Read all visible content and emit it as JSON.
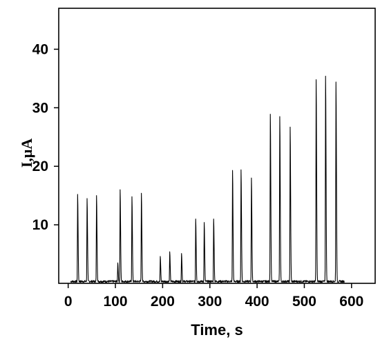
{
  "chart_data": {
    "type": "line",
    "title": "",
    "xlabel": "Time, s",
    "ylabel": "I,μA",
    "xlim": [
      -20,
      650
    ],
    "ylim": [
      0,
      47
    ],
    "xticks": [
      0,
      100,
      200,
      300,
      400,
      500,
      600
    ],
    "yticks": [
      10,
      20,
      30,
      40
    ],
    "grid": false,
    "legend": "none",
    "line_color": "#000000",
    "baseline": {
      "start": 5,
      "end": 585
    },
    "series": [
      {
        "peaks": [
          {
            "t": 20,
            "i": 15.2
          },
          {
            "t": 40,
            "i": 14.5
          },
          {
            "t": 60,
            "i": 15.0
          },
          {
            "t": 105,
            "i": 3.5
          },
          {
            "t": 110,
            "i": 16.0
          },
          {
            "t": 135,
            "i": 14.8
          },
          {
            "t": 155,
            "i": 15.4
          },
          {
            "t": 195,
            "i": 4.6
          },
          {
            "t": 215,
            "i": 5.4
          },
          {
            "t": 240,
            "i": 5.1
          },
          {
            "t": 270,
            "i": 11.0
          },
          {
            "t": 288,
            "i": 10.4
          },
          {
            "t": 308,
            "i": 11.0
          },
          {
            "t": 348,
            "i": 19.3
          },
          {
            "t": 366,
            "i": 19.4
          },
          {
            "t": 388,
            "i": 18.0
          },
          {
            "t": 428,
            "i": 28.9
          },
          {
            "t": 448,
            "i": 28.5
          },
          {
            "t": 470,
            "i": 26.7
          },
          {
            "t": 525,
            "i": 34.8
          },
          {
            "t": 545,
            "i": 35.4
          },
          {
            "t": 567,
            "i": 34.4
          }
        ]
      }
    ]
  }
}
